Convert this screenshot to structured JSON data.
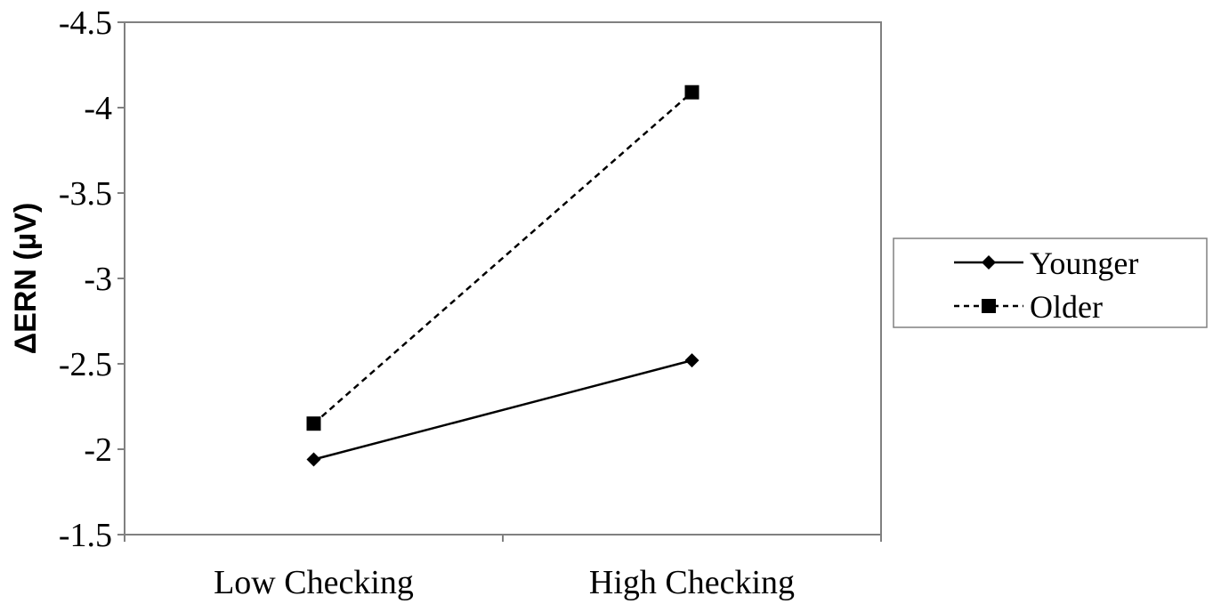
{
  "chart_data": {
    "type": "line",
    "categories": [
      "Low Checking",
      "High Checking"
    ],
    "ylabel": "ΔERN (µV)",
    "ylim": [
      -1.5,
      -4.5
    ],
    "yticks": [
      "-4.5",
      "-4",
      "-3.5",
      "-3",
      "-2.5",
      "-2",
      "-1.5"
    ],
    "ytick_values": [
      -4.5,
      -4,
      -3.5,
      -3,
      -2.5,
      -2,
      -1.5
    ],
    "y_axis_inverted": true,
    "grid": false,
    "legend_position": "right",
    "series": [
      {
        "name": "Younger",
        "values": [
          -1.94,
          -2.52
        ],
        "marker": "diamond",
        "line_style": "solid",
        "color": "#000000"
      },
      {
        "name": "Older",
        "values": [
          -2.15,
          -4.09
        ],
        "marker": "square",
        "line_style": "dashed",
        "color": "#000000"
      }
    ]
  }
}
